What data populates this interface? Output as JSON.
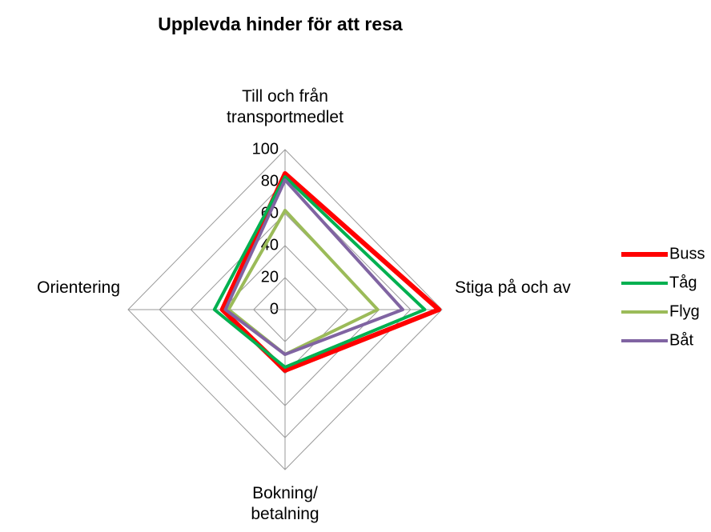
{
  "chart_data": {
    "type": "radar",
    "title": "Upplevda hinder för att resa",
    "categories": [
      "Till och från transportmedlet",
      "Stiga på och av",
      "Bokning/ betalning",
      "Orientering"
    ],
    "series": [
      {
        "name": "Buss",
        "color": "#ff0000",
        "values": [
          85,
          98,
          38,
          40
        ]
      },
      {
        "name": "Tåg",
        "color": "#00b050",
        "values": [
          83,
          89,
          36,
          45
        ]
      },
      {
        "name": "Flyg",
        "color": "#9bbb59",
        "values": [
          62,
          59,
          28,
          36
        ]
      },
      {
        "name": "Båt",
        "color": "#8064a2",
        "values": [
          81,
          75,
          28,
          38
        ]
      }
    ],
    "ylim": [
      0,
      100
    ],
    "yticks": [
      0,
      20,
      40,
      60,
      80,
      100
    ],
    "grid": true,
    "legend": "right"
  }
}
